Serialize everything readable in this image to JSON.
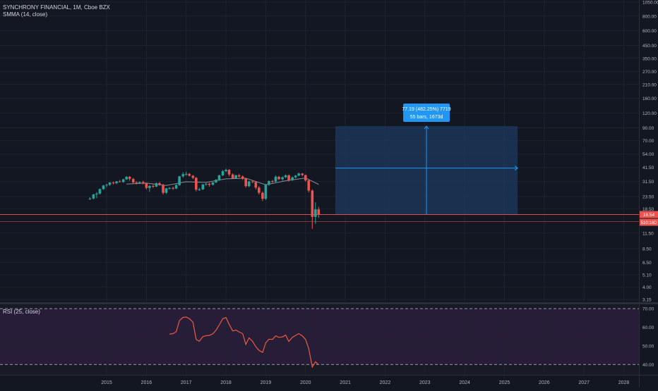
{
  "header": {
    "symbol_line": "SYNCHRONY FINANCIAL, 1M, Cboe BZX",
    "indicator_line": "SMMA (14, close)"
  },
  "rsi_panel": {
    "label": "RSI (25, close)"
  },
  "colors": {
    "background": "#131722",
    "grid": "#1f2330",
    "up_candle": "#26a69a",
    "down_candle": "#ef5350",
    "smma": "#b2b5be",
    "rsi_line": "#f05a3c",
    "rsi_band": "#2a1f3d",
    "measure_fill": "#1c3a5e",
    "measure_line": "#2196f3",
    "last_price_badge": "#ef5350",
    "price_line": "#ef5350"
  },
  "measure_tool": {
    "line1": "77.19 (482.25%) 7719",
    "line2": "55 bars, 1673d"
  },
  "price_badges": {
    "last": "16.54",
    "countdown": "510:18D"
  },
  "chart_data": [
    {
      "type": "candlestick",
      "title": "SYNCHRONY FINANCIAL, 1M, Cboe BZX",
      "scale": "log",
      "y_ticks": [
        1050,
        800,
        600,
        450,
        350,
        270,
        210,
        160,
        120,
        90,
        70,
        54,
        41.5,
        31.5,
        23.5,
        18.5,
        11.5,
        8.5,
        6.5,
        5.1,
        4.0,
        3.15
      ],
      "y_tick_labels": [
        "1050.00",
        "800.00",
        "600.00",
        "450.00",
        "350.00",
        "270.00",
        "210.00",
        "160.00",
        "120.00",
        "90.00",
        "70.00",
        "54.00",
        "41.50",
        "31.50",
        "23.50",
        "18.50",
        "11.50",
        "8.50",
        "6.50",
        "5.10",
        "4.00",
        "3.15"
      ],
      "x_ticks": [
        "2015",
        "2016",
        "2017",
        "2018",
        "2019",
        "2020",
        "2021",
        "2022",
        "2023",
        "2024",
        "2025",
        "2026",
        "2027",
        "2028"
      ],
      "x_tick_years": [
        2015,
        2016,
        2017,
        2018,
        2019,
        2020,
        2021,
        2022,
        2023,
        2024,
        2025,
        2026,
        2027,
        2028
      ],
      "ylim": [
        3.15,
        1050
      ],
      "grid": true,
      "last_price": 16.54,
      "candles": [
        {
          "t": 2014.58,
          "o": 22.5,
          "h": 23.2,
          "l": 22.0,
          "c": 22.6
        },
        {
          "t": 2014.67,
          "o": 22.6,
          "h": 24.8,
          "l": 22.3,
          "c": 24.5
        },
        {
          "t": 2014.75,
          "o": 24.5,
          "h": 25.6,
          "l": 22.8,
          "c": 24.9
        },
        {
          "t": 2014.83,
          "o": 24.9,
          "h": 27.5,
          "l": 24.5,
          "c": 27.2
        },
        {
          "t": 2014.92,
          "o": 27.2,
          "h": 29.4,
          "l": 26.8,
          "c": 29.2
        },
        {
          "t": 2015.0,
          "o": 29.2,
          "h": 30.2,
          "l": 28.2,
          "c": 29.6
        },
        {
          "t": 2015.08,
          "o": 29.6,
          "h": 31.2,
          "l": 29.0,
          "c": 30.9
        },
        {
          "t": 2015.17,
          "o": 30.9,
          "h": 31.5,
          "l": 29.8,
          "c": 30.5
        },
        {
          "t": 2015.25,
          "o": 30.5,
          "h": 31.8,
          "l": 30.0,
          "c": 31.6
        },
        {
          "t": 2015.33,
          "o": 31.6,
          "h": 32.5,
          "l": 31.0,
          "c": 31.2
        },
        {
          "t": 2015.42,
          "o": 31.2,
          "h": 33.3,
          "l": 30.8,
          "c": 32.9
        },
        {
          "t": 2015.5,
          "o": 32.9,
          "h": 35.0,
          "l": 32.5,
          "c": 34.6
        },
        {
          "t": 2015.58,
          "o": 34.6,
          "h": 35.0,
          "l": 32.0,
          "c": 33.2
        },
        {
          "t": 2015.67,
          "o": 33.2,
          "h": 33.8,
          "l": 30.3,
          "c": 31.0
        },
        {
          "t": 2015.75,
          "o": 31.0,
          "h": 31.8,
          "l": 29.8,
          "c": 30.6
        },
        {
          "t": 2015.83,
          "o": 30.6,
          "h": 31.5,
          "l": 30.0,
          "c": 31.2
        },
        {
          "t": 2015.92,
          "o": 31.2,
          "h": 32.0,
          "l": 29.8,
          "c": 30.3
        },
        {
          "t": 2016.0,
          "o": 30.3,
          "h": 30.8,
          "l": 27.0,
          "c": 27.8
        },
        {
          "t": 2016.08,
          "o": 27.8,
          "h": 29.5,
          "l": 25.8,
          "c": 28.9
        },
        {
          "t": 2016.17,
          "o": 28.9,
          "h": 29.8,
          "l": 27.8,
          "c": 28.6
        },
        {
          "t": 2016.25,
          "o": 28.6,
          "h": 31.0,
          "l": 28.2,
          "c": 30.5
        },
        {
          "t": 2016.33,
          "o": 30.5,
          "h": 31.2,
          "l": 29.0,
          "c": 29.5
        },
        {
          "t": 2016.42,
          "o": 29.5,
          "h": 30.2,
          "l": 24.5,
          "c": 25.3
        },
        {
          "t": 2016.5,
          "o": 25.3,
          "h": 27.8,
          "l": 24.8,
          "c": 27.6
        },
        {
          "t": 2016.58,
          "o": 27.6,
          "h": 28.2,
          "l": 27.0,
          "c": 27.8
        },
        {
          "t": 2016.67,
          "o": 27.8,
          "h": 28.5,
          "l": 26.8,
          "c": 27.5
        },
        {
          "t": 2016.75,
          "o": 27.5,
          "h": 30.0,
          "l": 27.2,
          "c": 29.4
        },
        {
          "t": 2016.83,
          "o": 29.4,
          "h": 35.2,
          "l": 29.0,
          "c": 34.9
        },
        {
          "t": 2016.92,
          "o": 34.9,
          "h": 37.8,
          "l": 34.0,
          "c": 36.4
        },
        {
          "t": 2017.0,
          "o": 36.4,
          "h": 38.2,
          "l": 35.2,
          "c": 36.6
        },
        {
          "t": 2017.08,
          "o": 36.6,
          "h": 37.2,
          "l": 34.8,
          "c": 35.3
        },
        {
          "t": 2017.17,
          "o": 35.3,
          "h": 35.8,
          "l": 33.0,
          "c": 33.9
        },
        {
          "t": 2017.25,
          "o": 33.9,
          "h": 34.5,
          "l": 26.0,
          "c": 26.9
        },
        {
          "t": 2017.33,
          "o": 26.9,
          "h": 27.9,
          "l": 26.3,
          "c": 27.0
        },
        {
          "t": 2017.42,
          "o": 27.0,
          "h": 30.0,
          "l": 26.8,
          "c": 29.8
        },
        {
          "t": 2017.5,
          "o": 29.8,
          "h": 30.6,
          "l": 29.0,
          "c": 30.2
        },
        {
          "t": 2017.58,
          "o": 30.2,
          "h": 30.8,
          "l": 28.5,
          "c": 29.6
        },
        {
          "t": 2017.67,
          "o": 29.6,
          "h": 31.2,
          "l": 29.2,
          "c": 31.0
        },
        {
          "t": 2017.75,
          "o": 31.0,
          "h": 33.0,
          "l": 30.5,
          "c": 32.6
        },
        {
          "t": 2017.83,
          "o": 32.6,
          "h": 36.0,
          "l": 32.0,
          "c": 35.6
        },
        {
          "t": 2017.92,
          "o": 35.6,
          "h": 39.5,
          "l": 35.0,
          "c": 38.6
        },
        {
          "t": 2018.0,
          "o": 38.6,
          "h": 40.6,
          "l": 37.8,
          "c": 39.6
        },
        {
          "t": 2018.08,
          "o": 39.6,
          "h": 40.2,
          "l": 35.0,
          "c": 36.2
        },
        {
          "t": 2018.17,
          "o": 36.2,
          "h": 37.0,
          "l": 33.0,
          "c": 33.6
        },
        {
          "t": 2018.25,
          "o": 33.6,
          "h": 36.0,
          "l": 33.2,
          "c": 35.6
        },
        {
          "t": 2018.33,
          "o": 35.6,
          "h": 36.5,
          "l": 34.0,
          "c": 34.8
        },
        {
          "t": 2018.42,
          "o": 34.8,
          "h": 35.5,
          "l": 32.5,
          "c": 33.3
        },
        {
          "t": 2018.5,
          "o": 33.3,
          "h": 34.0,
          "l": 28.0,
          "c": 28.8
        },
        {
          "t": 2018.58,
          "o": 28.8,
          "h": 32.0,
          "l": 28.2,
          "c": 31.6
        },
        {
          "t": 2018.67,
          "o": 31.6,
          "h": 32.5,
          "l": 30.5,
          "c": 31.2
        },
        {
          "t": 2018.75,
          "o": 31.2,
          "h": 31.8,
          "l": 27.0,
          "c": 28.0
        },
        {
          "t": 2018.83,
          "o": 28.0,
          "h": 28.8,
          "l": 24.5,
          "c": 25.3
        },
        {
          "t": 2018.92,
          "o": 25.3,
          "h": 26.0,
          "l": 21.5,
          "c": 22.5
        },
        {
          "t": 2019.0,
          "o": 22.5,
          "h": 30.0,
          "l": 22.0,
          "c": 29.6
        },
        {
          "t": 2019.08,
          "o": 29.6,
          "h": 32.2,
          "l": 29.0,
          "c": 31.8
        },
        {
          "t": 2019.17,
          "o": 31.8,
          "h": 32.5,
          "l": 30.5,
          "c": 31.5
        },
        {
          "t": 2019.25,
          "o": 31.5,
          "h": 35.5,
          "l": 31.0,
          "c": 34.6
        },
        {
          "t": 2019.33,
          "o": 34.6,
          "h": 35.2,
          "l": 32.5,
          "c": 33.0
        },
        {
          "t": 2019.42,
          "o": 33.0,
          "h": 34.8,
          "l": 32.0,
          "c": 34.3
        },
        {
          "t": 2019.5,
          "o": 34.3,
          "h": 36.2,
          "l": 33.8,
          "c": 35.6
        },
        {
          "t": 2019.58,
          "o": 35.6,
          "h": 36.2,
          "l": 31.5,
          "c": 32.3
        },
        {
          "t": 2019.67,
          "o": 32.3,
          "h": 34.8,
          "l": 32.0,
          "c": 34.2
        },
        {
          "t": 2019.75,
          "o": 34.2,
          "h": 35.8,
          "l": 33.5,
          "c": 35.4
        },
        {
          "t": 2019.83,
          "o": 35.4,
          "h": 37.5,
          "l": 35.0,
          "c": 36.9
        },
        {
          "t": 2019.92,
          "o": 36.9,
          "h": 37.2,
          "l": 35.0,
          "c": 35.8
        },
        {
          "t": 2020.0,
          "o": 35.8,
          "h": 36.0,
          "l": 31.5,
          "c": 32.2
        },
        {
          "t": 2020.08,
          "o": 32.2,
          "h": 32.8,
          "l": 25.5,
          "c": 26.4
        },
        {
          "t": 2020.17,
          "o": 26.4,
          "h": 27.0,
          "l": 12.5,
          "c": 15.8
        },
        {
          "t": 2020.25,
          "o": 15.8,
          "h": 21.0,
          "l": 13.8,
          "c": 18.3
        },
        {
          "t": 2020.33,
          "o": 18.3,
          "h": 19.2,
          "l": 15.5,
          "c": 16.54
        }
      ],
      "smma": [
        {
          "t": 2015.5,
          "v": 30.0
        },
        {
          "t": 2016.0,
          "v": 30.6
        },
        {
          "t": 2016.5,
          "v": 29.2
        },
        {
          "t": 2017.0,
          "v": 31.4
        },
        {
          "t": 2017.5,
          "v": 31.0
        },
        {
          "t": 2018.0,
          "v": 33.2
        },
        {
          "t": 2018.5,
          "v": 33.6
        },
        {
          "t": 2019.0,
          "v": 29.6
        },
        {
          "t": 2019.5,
          "v": 32.0
        },
        {
          "t": 2020.0,
          "v": 33.8
        },
        {
          "t": 2020.33,
          "v": 29.8
        }
      ]
    },
    {
      "type": "line",
      "title": "RSI (25, close)",
      "ylim": [
        36,
        71
      ],
      "y_ticks": [
        70,
        60,
        50,
        40
      ],
      "y_tick_labels": [
        "70.00",
        "60.00",
        "50.00",
        "40.00"
      ],
      "band": [
        40,
        70
      ],
      "series": [
        {
          "points": [
            {
              "t": 2016.58,
              "v": 56.3
            },
            {
              "t": 2016.67,
              "v": 56.6
            },
            {
              "t": 2016.75,
              "v": 57.6
            },
            {
              "t": 2016.83,
              "v": 63.6
            },
            {
              "t": 2016.92,
              "v": 65.3
            },
            {
              "t": 2017.0,
              "v": 65.5
            },
            {
              "t": 2017.08,
              "v": 64.6
            },
            {
              "t": 2017.17,
              "v": 62.8
            },
            {
              "t": 2017.25,
              "v": 53.5
            },
            {
              "t": 2017.33,
              "v": 52.5
            },
            {
              "t": 2017.42,
              "v": 55.0
            },
            {
              "t": 2017.5,
              "v": 55.5
            },
            {
              "t": 2017.58,
              "v": 55.6
            },
            {
              "t": 2017.67,
              "v": 56.5
            },
            {
              "t": 2017.75,
              "v": 58.4
            },
            {
              "t": 2017.83,
              "v": 61.2
            },
            {
              "t": 2017.92,
              "v": 64.6
            },
            {
              "t": 2018.0,
              "v": 65.2
            },
            {
              "t": 2018.08,
              "v": 61.6
            },
            {
              "t": 2018.17,
              "v": 58.0
            },
            {
              "t": 2018.25,
              "v": 58.5
            },
            {
              "t": 2018.33,
              "v": 57.5
            },
            {
              "t": 2018.42,
              "v": 56.6
            },
            {
              "t": 2018.5,
              "v": 50.8
            },
            {
              "t": 2018.58,
              "v": 54.3
            },
            {
              "t": 2018.67,
              "v": 52.4
            },
            {
              "t": 2018.75,
              "v": 49.6
            },
            {
              "t": 2018.83,
              "v": 47.6
            },
            {
              "t": 2018.92,
              "v": 46.5
            },
            {
              "t": 2019.0,
              "v": 51.6
            },
            {
              "t": 2019.08,
              "v": 53.6
            },
            {
              "t": 2019.17,
              "v": 53.5
            },
            {
              "t": 2019.25,
              "v": 55.4
            },
            {
              "t": 2019.33,
              "v": 54.6
            },
            {
              "t": 2019.42,
              "v": 54.8
            },
            {
              "t": 2019.5,
              "v": 55.8
            },
            {
              "t": 2019.58,
              "v": 52.4
            },
            {
              "t": 2019.67,
              "v": 54.6
            },
            {
              "t": 2019.75,
              "v": 55.6
            },
            {
              "t": 2019.83,
              "v": 56.6
            },
            {
              "t": 2019.92,
              "v": 55.4
            },
            {
              "t": 2020.0,
              "v": 53.5
            },
            {
              "t": 2020.08,
              "v": 48.6
            },
            {
              "t": 2020.17,
              "v": 38.6
            },
            {
              "t": 2020.25,
              "v": 41.5
            },
            {
              "t": 2020.33,
              "v": 39.8
            }
          ]
        }
      ]
    }
  ]
}
